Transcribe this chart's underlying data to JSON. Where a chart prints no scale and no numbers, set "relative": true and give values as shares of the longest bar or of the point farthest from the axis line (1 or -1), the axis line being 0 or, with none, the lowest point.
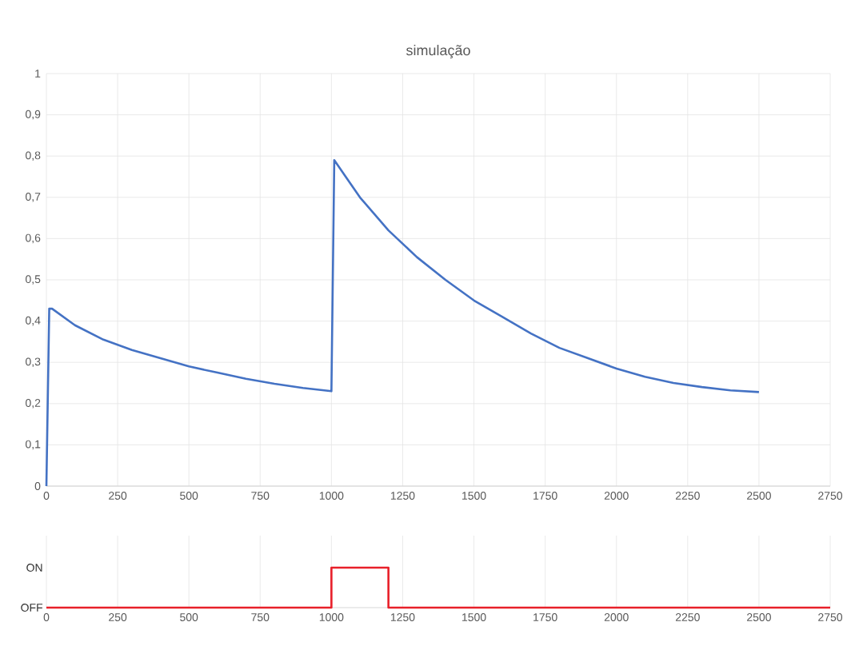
{
  "chart_data": [
    {
      "type": "line",
      "title": "simulação",
      "x": [
        0,
        10,
        20,
        100,
        200,
        300,
        400,
        500,
        600,
        700,
        800,
        900,
        1000,
        1010,
        1050,
        1100,
        1200,
        1300,
        1400,
        1500,
        1600,
        1700,
        1800,
        1900,
        2000,
        2100,
        2200,
        2300,
        2400,
        2500
      ],
      "series": [
        {
          "color": "#4472c4",
          "values": [
            0,
            0.43,
            0.43,
            0.39,
            0.355,
            0.33,
            0.31,
            0.29,
            0.275,
            0.26,
            0.248,
            0.238,
            0.23,
            0.79,
            0.75,
            0.7,
            0.62,
            0.555,
            0.5,
            0.45,
            0.41,
            0.37,
            0.335,
            0.31,
            0.285,
            0.265,
            0.25,
            0.24,
            0.232,
            0.228
          ]
        }
      ],
      "xlim": [
        0,
        2750
      ],
      "xticks": [
        0,
        250,
        500,
        750,
        1000,
        1250,
        1500,
        1750,
        2000,
        2250,
        2500,
        2750
      ],
      "ylim": [
        0,
        1
      ],
      "yticks": [
        {
          "value": 0,
          "label": "0"
        },
        {
          "value": 0.1,
          "label": "0,1"
        },
        {
          "value": 0.2,
          "label": "0,2"
        },
        {
          "value": 0.3,
          "label": "0,3"
        },
        {
          "value": 0.4,
          "label": "0,4"
        },
        {
          "value": 0.5,
          "label": "0,5"
        },
        {
          "value": 0.6,
          "label": "0,6"
        },
        {
          "value": 0.7,
          "label": "0,7"
        },
        {
          "value": 0.8,
          "label": "0,8"
        },
        {
          "value": 0.9,
          "label": "0,9"
        },
        {
          "value": 1,
          "label": "1"
        }
      ],
      "grid": true,
      "marker": "none",
      "line_style": "solid"
    },
    {
      "type": "step",
      "x": [
        0,
        1000,
        1200,
        2750
      ],
      "series": [
        {
          "color": "#e8202a",
          "values": [
            0,
            1,
            0,
            0
          ]
        }
      ],
      "xlim": [
        0,
        2750
      ],
      "xticks": [
        0,
        250,
        500,
        750,
        1000,
        1250,
        1500,
        1750,
        2000,
        2250,
        2500,
        2750
      ],
      "relative": true,
      "annotations": [
        "OFF",
        "ON"
      ],
      "grid": true,
      "marker": "none",
      "line_style": "solid"
    }
  ]
}
